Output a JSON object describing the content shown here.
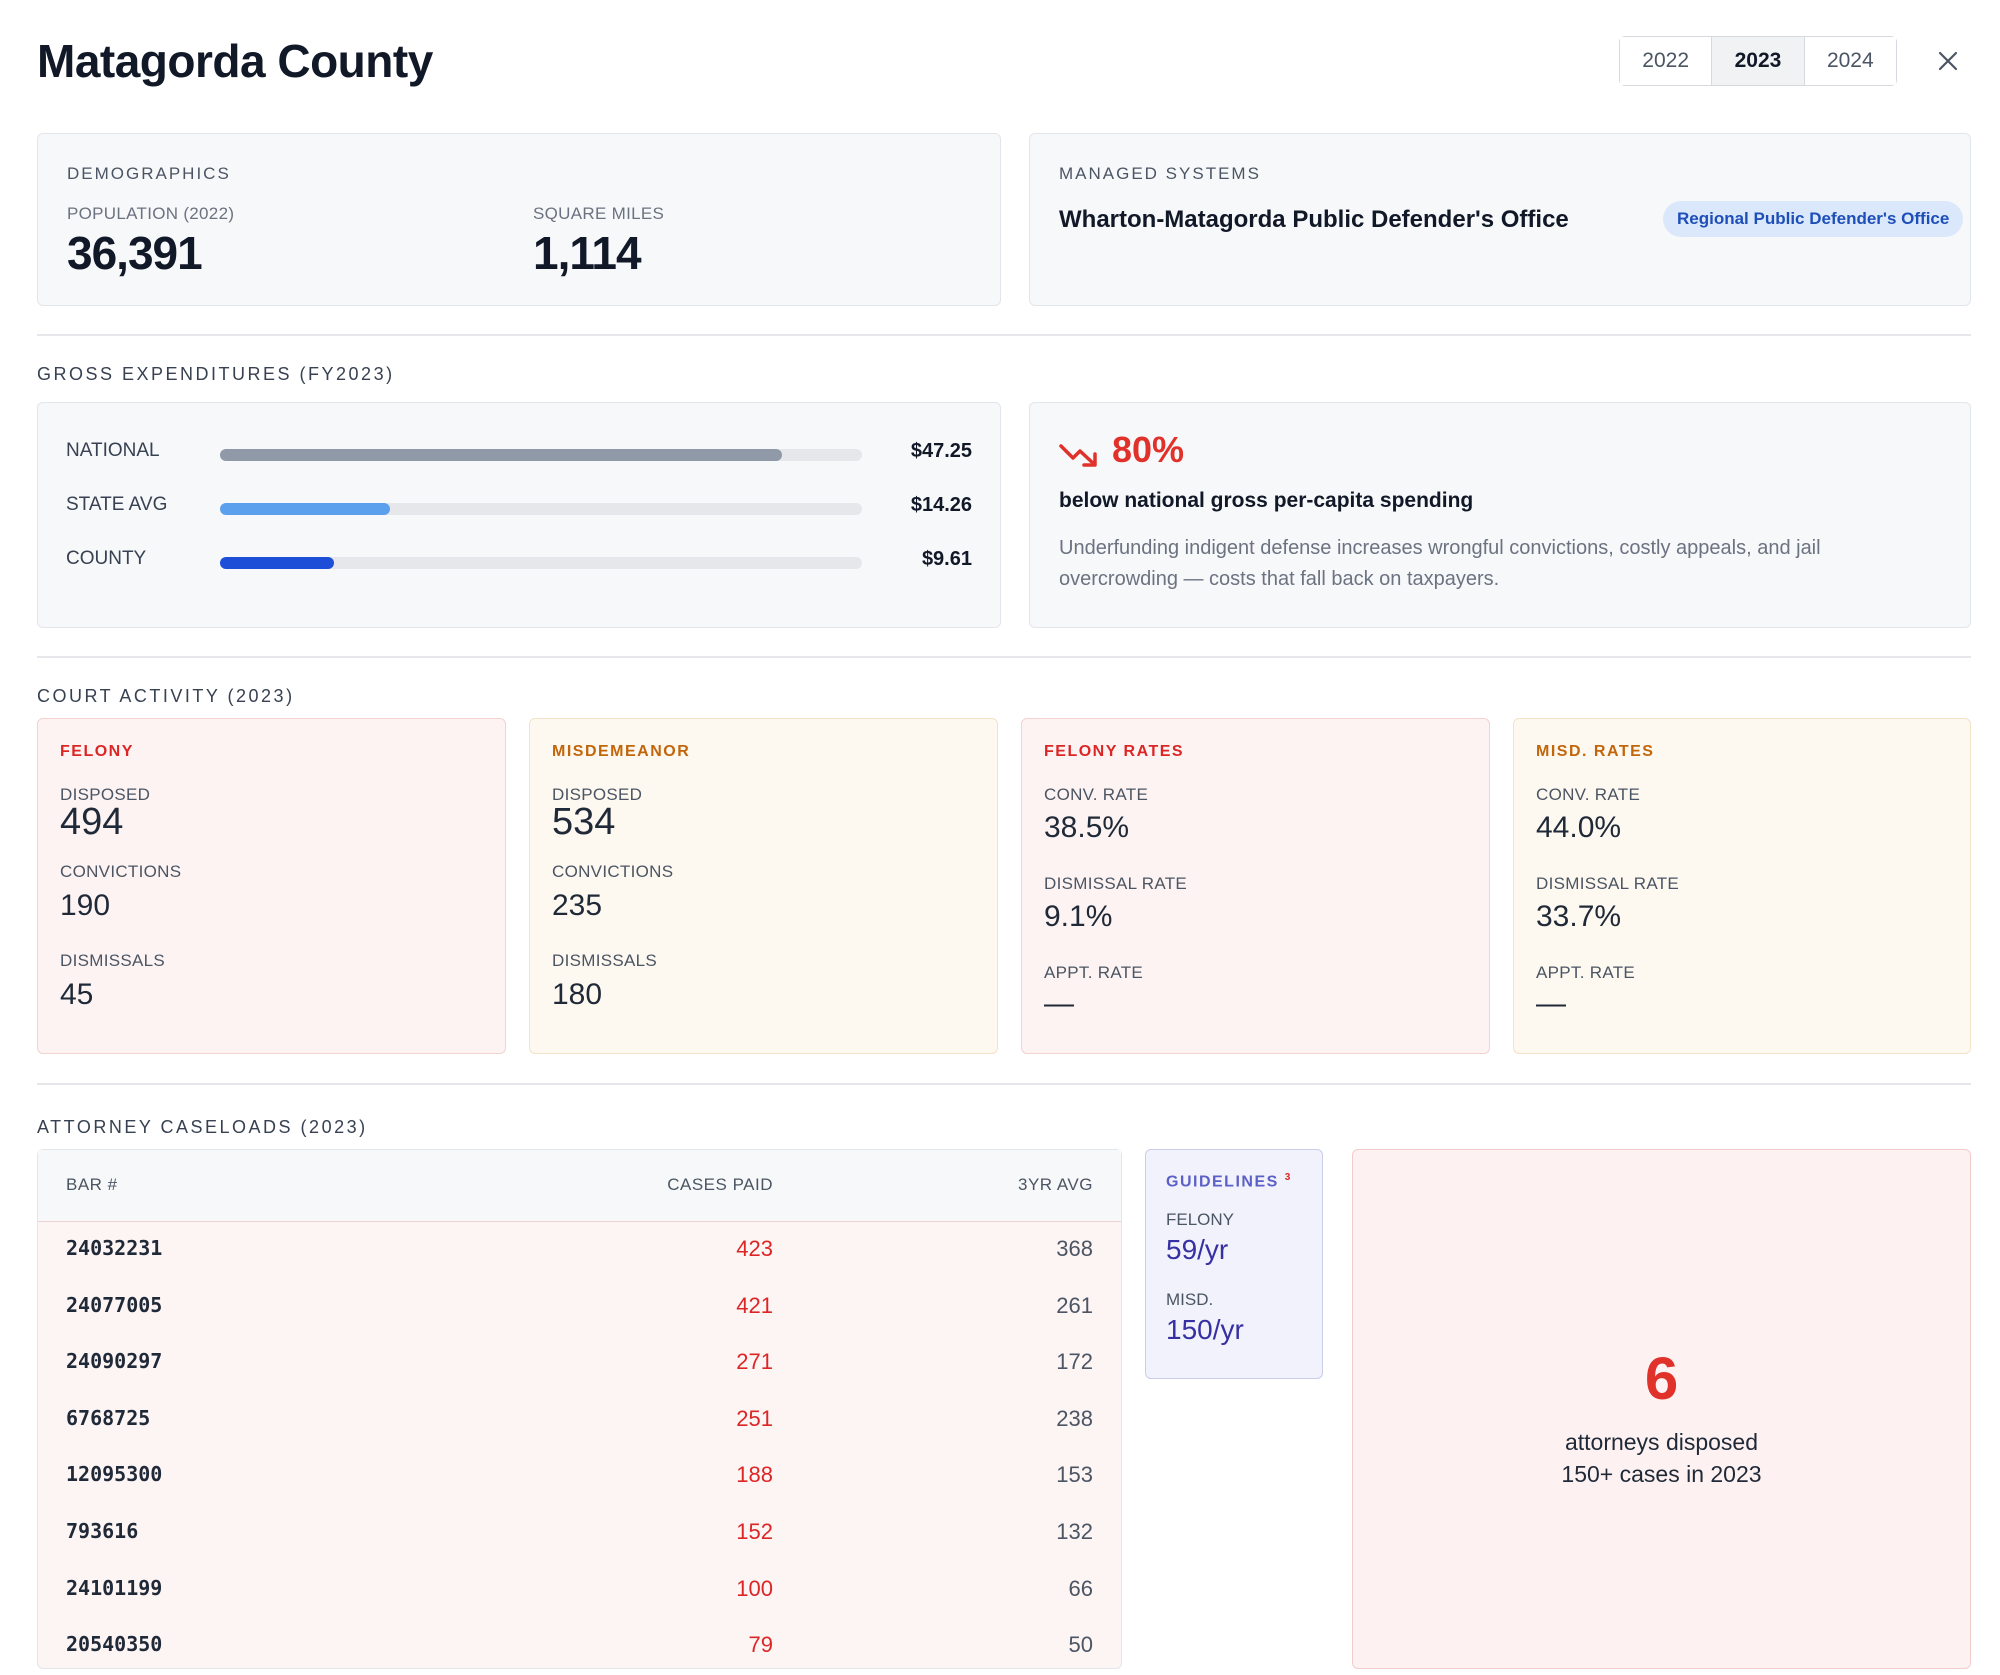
{
  "header": {
    "title": "Matagorda County",
    "years": [
      "2022",
      "2023",
      "2024"
    ],
    "selected_year": "2023",
    "close_icon": "close-icon"
  },
  "demographics": {
    "label": "DEMOGRAPHICS",
    "population_label": "POPULATION (2022)",
    "population": "36,391",
    "sqmi_label": "SQUARE MILES",
    "sqmi": "1,114"
  },
  "managed_systems": {
    "label": "MANAGED SYSTEMS",
    "office": "Wharton-Matagorda Public Defender's Office",
    "badge": "Regional Public Defender's Office"
  },
  "expenditures": {
    "section_label": "GROSS EXPENDITURES (FY2023)",
    "rows": [
      {
        "label": "NATIONAL",
        "value": "$47.25",
        "amount": 47.25,
        "color": "#8f99a8"
      },
      {
        "label": "STATE AVG",
        "value": "$14.26",
        "amount": 14.26,
        "color": "#5ba0ec"
      },
      {
        "label": "COUNTY",
        "value": "$9.61",
        "amount": 9.61,
        "color": "#1d4ed8"
      }
    ],
    "scale_max": 54,
    "callout": {
      "icon": "trending-down-icon",
      "percent": "80%",
      "headline": "below national gross per-capita spending",
      "body": "Underfunding indigent defense increases wrongful convictions, costly appeals, and jail overcrowding — costs that fall back on taxpayers."
    }
  },
  "court": {
    "section_label": "COURT ACTIVITY (2023)",
    "felony": {
      "head": "FELONY",
      "disposed_label": "DISPOSED",
      "disposed": "494",
      "convictions_label": "CONVICTIONS",
      "convictions": "190",
      "dismissals_label": "DISMISSALS",
      "dismissals": "45"
    },
    "misdemeanor": {
      "head": "MISDEMEANOR",
      "disposed_label": "DISPOSED",
      "disposed": "534",
      "convictions_label": "CONVICTIONS",
      "convictions": "235",
      "dismissals_label": "DISMISSALS",
      "dismissals": "180"
    },
    "felony_rates": {
      "head": "FELONY RATES",
      "conv_label": "CONV. RATE",
      "conv": "38.5%",
      "dismissal_label": "DISMISSAL RATE",
      "dismissal": "9.1%",
      "appt_label": "APPT. RATE",
      "appt": "—"
    },
    "misd_rates": {
      "head": "MISD. RATES",
      "conv_label": "CONV. RATE",
      "conv": "44.0%",
      "dismissal_label": "DISMISSAL RATE",
      "dismissal": "33.7%",
      "appt_label": "APPT. RATE",
      "appt": "—"
    }
  },
  "caseloads": {
    "section_label": "ATTORNEY CASELOADS (2023)",
    "columns": {
      "bar": "BAR #",
      "cases": "CASES PAID",
      "avg": "3YR AVG"
    },
    "rows": [
      {
        "bar": "24032231",
        "cases": "423",
        "avg": "368"
      },
      {
        "bar": "24077005",
        "cases": "421",
        "avg": "261"
      },
      {
        "bar": "24090297",
        "cases": "271",
        "avg": "172"
      },
      {
        "bar": "6768725",
        "cases": "251",
        "avg": "238"
      },
      {
        "bar": "12095300",
        "cases": "188",
        "avg": "153"
      },
      {
        "bar": "793616",
        "cases": "152",
        "avg": "132"
      },
      {
        "bar": "24101199",
        "cases": "100",
        "avg": "66"
      },
      {
        "bar": "20540350",
        "cases": "79",
        "avg": "50"
      }
    ],
    "guidelines": {
      "head": "GUIDELINES",
      "footnote": "3",
      "felony_label": "FELONY",
      "felony": "59/yr",
      "misd_label": "MISD.",
      "misd": "150/yr"
    },
    "summary": {
      "count": "6",
      "text_line1": "attorneys disposed",
      "text_line2": "150+ cases in 2023"
    }
  }
}
